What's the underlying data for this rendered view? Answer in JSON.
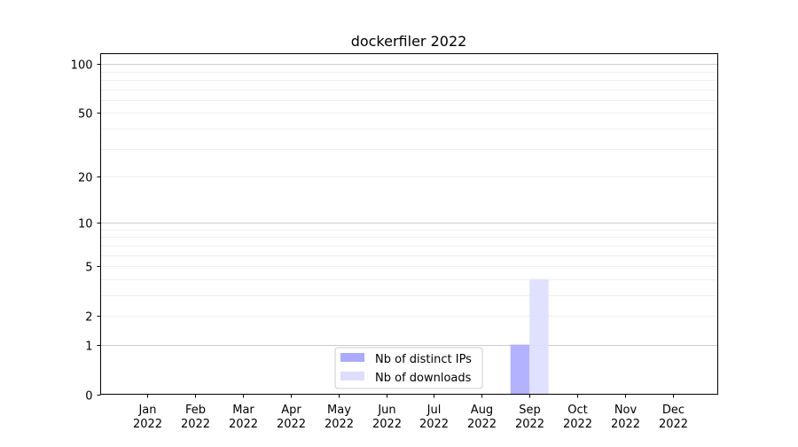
{
  "chart_data": {
    "type": "bar",
    "title": "dockerfiler 2022",
    "xlabel": "",
    "ylabel": "",
    "yscale": "log(1+y)",
    "ylim": [
      0,
      116
    ],
    "yticks": [
      0,
      1,
      2,
      5,
      10,
      20,
      50,
      100
    ],
    "yticklabels": [
      "0",
      "1",
      "2",
      "5",
      "10",
      "20",
      "50",
      "100"
    ],
    "minor_gridlines": [
      3,
      4,
      6,
      7,
      8,
      9,
      30,
      40,
      60,
      70,
      80,
      90
    ],
    "grid": true,
    "categories": [
      [
        "Jan",
        "2022"
      ],
      [
        "Feb",
        "2022"
      ],
      [
        "Mar",
        "2022"
      ],
      [
        "Apr",
        "2022"
      ],
      [
        "May",
        "2022"
      ],
      [
        "Jun",
        "2022"
      ],
      [
        "Jul",
        "2022"
      ],
      [
        "Aug",
        "2022"
      ],
      [
        "Sep",
        "2022"
      ],
      [
        "Oct",
        "2022"
      ],
      [
        "Nov",
        "2022"
      ],
      [
        "Dec",
        "2022"
      ]
    ],
    "series": [
      {
        "name": "Nb of distinct IPs",
        "color": "#aaaaff",
        "values": [
          0,
          0,
          0,
          0,
          0,
          0,
          0,
          0,
          1,
          0,
          0,
          0
        ]
      },
      {
        "name": "Nb of downloads",
        "color": "#ddddff",
        "values": [
          0,
          0,
          0,
          0,
          0,
          0,
          0,
          0,
          4,
          0,
          0,
          0
        ]
      }
    ],
    "legend_position": "lower-center"
  }
}
